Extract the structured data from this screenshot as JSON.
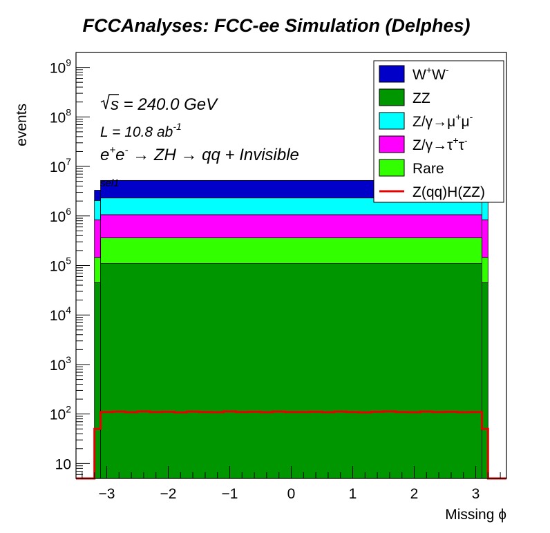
{
  "chart_data": {
    "type": "bar",
    "stacked": true,
    "title": "FCCAnalyses: FCC-ee Simulation (Delphes)",
    "xlabel": "Missing ϕ",
    "ylabel": "events",
    "xlim": [
      -3.5,
      3.5
    ],
    "ylim": [
      5,
      2000000000
    ],
    "yscale": "log",
    "x_ticks": [
      "−3",
      "−2",
      "−1",
      "0",
      "1",
      "2",
      "3"
    ],
    "x_tick_values": [
      -3,
      -2,
      -1,
      0,
      1,
      2,
      3
    ],
    "y_ticks": [
      {
        "value": 10,
        "base": "10",
        "exp": ""
      },
      {
        "value": 100,
        "base": "10",
        "exp": "2"
      },
      {
        "value": 1000,
        "base": "10",
        "exp": "3"
      },
      {
        "value": 10000,
        "base": "10",
        "exp": "4"
      },
      {
        "value": 100000,
        "base": "10",
        "exp": "5"
      },
      {
        "value": 1000000,
        "base": "10",
        "exp": "6"
      },
      {
        "value": 10000000,
        "base": "10",
        "exp": "7"
      },
      {
        "value": 100000000,
        "base": "10",
        "exp": "8"
      },
      {
        "value": 1000000000,
        "base": "10",
        "exp": "9"
      }
    ],
    "legend_position": "top-right",
    "bins": [
      {
        "x0": -3.2,
        "x1": -3.1,
        "ww": 1250000,
        "zz": 45000,
        "mumu": 1220000,
        "tautau": 690000,
        "rare": 100000
      },
      {
        "x0": -3.1,
        "x1": 3.1,
        "ww": 2900000,
        "zz": 110000,
        "mumu": 1250000,
        "tautau": 700000,
        "rare": 250000
      },
      {
        "x0": 3.1,
        "x1": 3.2,
        "ww": 1250000,
        "zz": 45000,
        "mumu": 1220000,
        "tautau": 690000,
        "rare": 100000
      }
    ],
    "stack_order": [
      "zz",
      "rare",
      "tautau",
      "mumu",
      "ww"
    ],
    "series_style": {
      "ww": "#0000c8",
      "zz": "#009600",
      "mumu": "#00ffff",
      "tautau": "#ff00ff",
      "rare": "#32ff00",
      "signal": "#e60000"
    },
    "signal": {
      "edges": [
        -3.5,
        -3.2,
        -3.15,
        -3.1,
        -2.9,
        -2.7,
        -2.5,
        -2.3,
        -2.1,
        -1.9,
        -1.7,
        -1.5,
        -1.3,
        -1.1,
        -0.9,
        -0.7,
        -0.5,
        -0.3,
        -0.1,
        0.1,
        0.3,
        0.5,
        0.7,
        0.9,
        1.1,
        1.3,
        1.5,
        1.7,
        1.9,
        2.1,
        2.3,
        2.5,
        2.7,
        2.9,
        3.1,
        3.15,
        3.2,
        3.5
      ],
      "values": [
        1,
        50,
        50,
        110,
        112,
        109,
        113,
        110,
        111,
        108,
        112,
        110,
        109,
        113,
        110,
        111,
        109,
        112,
        110,
        110,
        111,
        109,
        112,
        110,
        108,
        111,
        113,
        110,
        109,
        112,
        110,
        111,
        109,
        110,
        50,
        50,
        1
      ]
    },
    "legend": [
      {
        "key": "ww",
        "base": "W",
        "sup1": "+",
        "mid": "W",
        "sup2": "-"
      },
      {
        "key": "zz",
        "base": "ZZ",
        "sup1": "",
        "mid": "",
        "sup2": ""
      },
      {
        "key": "mumu",
        "base": "Z/γ→μ",
        "sup1": "+",
        "mid": "μ",
        "sup2": "-"
      },
      {
        "key": "tautau",
        "base": "Z/γ→τ",
        "sup1": "+",
        "mid": "τ",
        "sup2": "-"
      },
      {
        "key": "rare",
        "base": "Rare",
        "sup1": "",
        "mid": "",
        "sup2": ""
      },
      {
        "key": "signal",
        "base": "Z(qq)H(ZZ)",
        "sup1": "",
        "mid": "",
        "sup2": ""
      }
    ],
    "annotations": {
      "energy": "s = 240.0 GeV",
      "lumi_base": "L = 10.8 ab",
      "lumi_exp": "-1",
      "process_e": "e",
      "process_sup1": "+",
      "process_mid": "e",
      "process_sup2": "-",
      "process_rest": " → ZH → qq + Invisible",
      "selection": "sel1"
    }
  }
}
